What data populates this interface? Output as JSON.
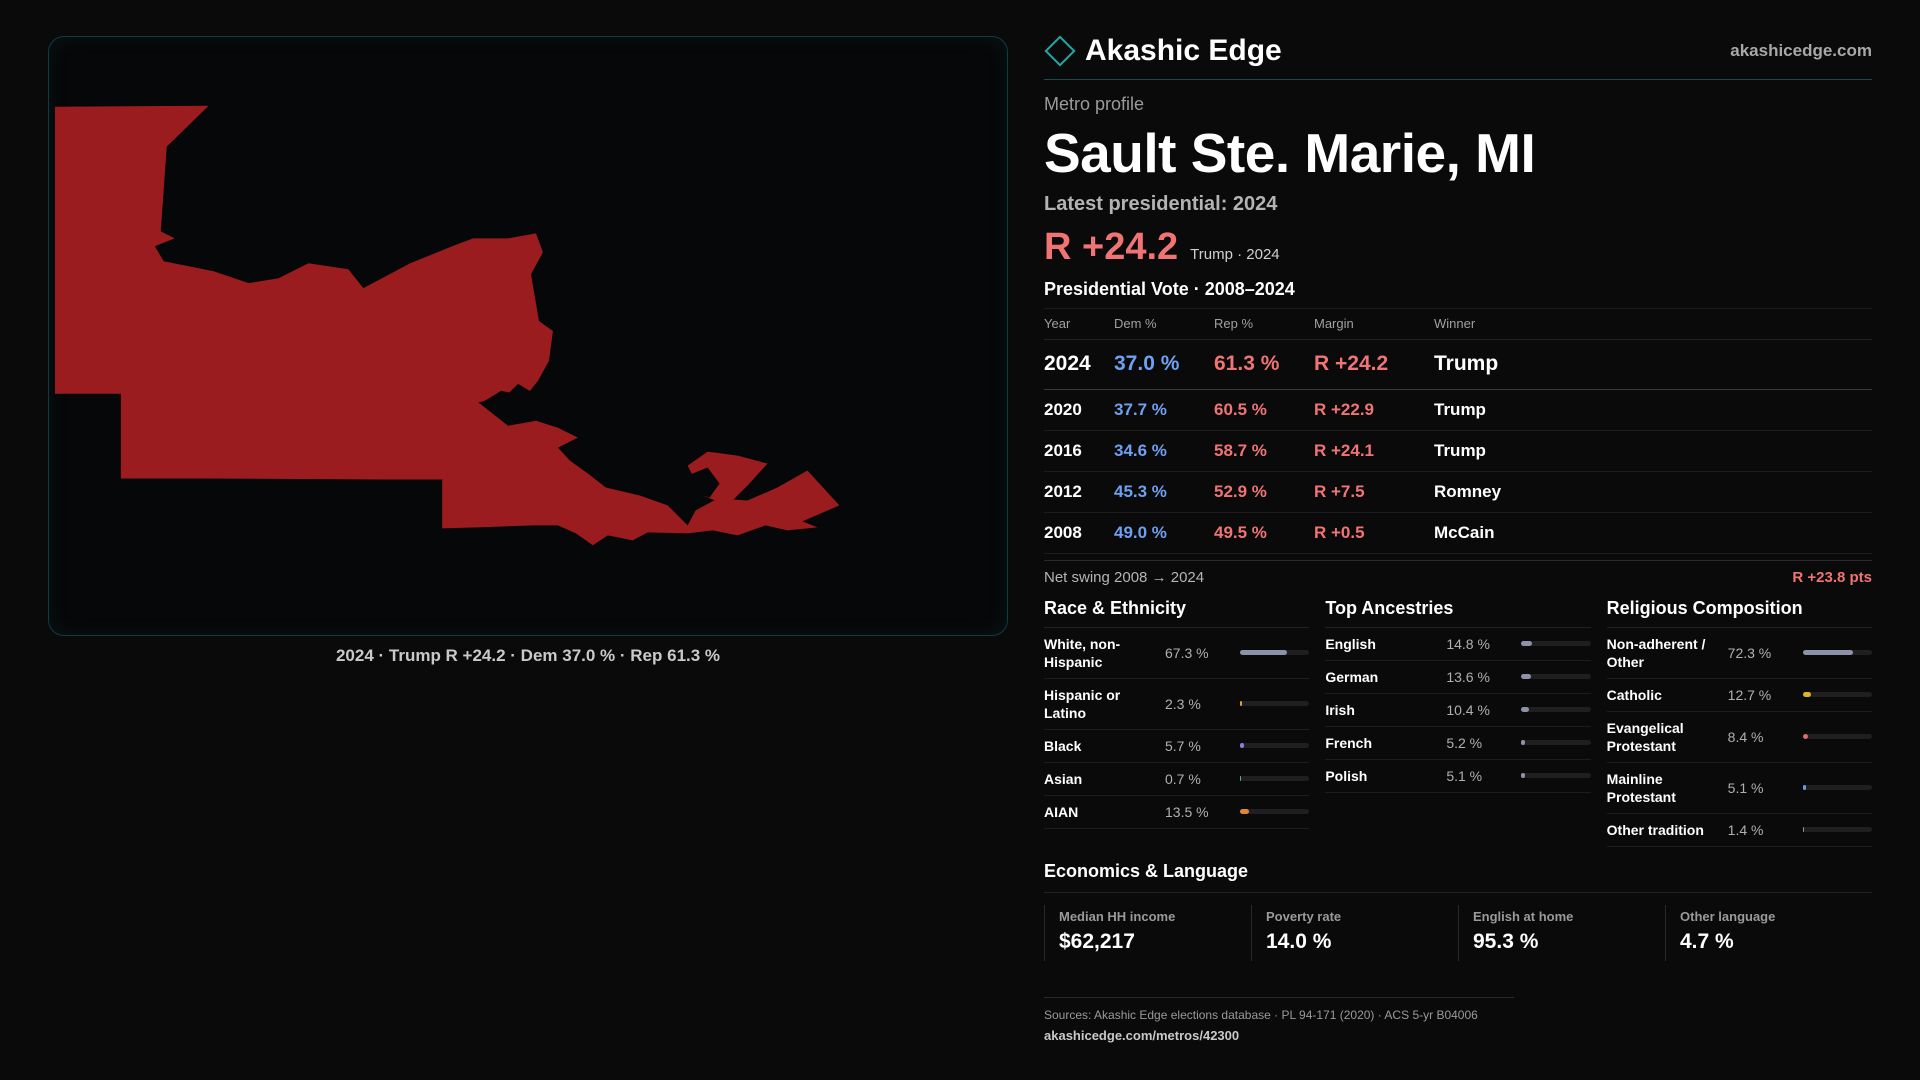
{
  "brand": {
    "name": "Akashic Edge",
    "url": "akashicedge.com",
    "logo_icon": "diamond-icon",
    "accent": "#1ea8a8"
  },
  "profile": {
    "eyebrow": "Metro profile",
    "title": "Sault Ste. Marie, MI",
    "latest_label": "Latest presidential: 2024",
    "headline_margin": "R +24.2",
    "headline_sub": "Trump · 2024"
  },
  "map": {
    "caption": "2024 · Trump R +24.2 · Dem 37.0 % · Rep 61.3 %",
    "fill_color": "#9b1c1f"
  },
  "votes": {
    "title": "Presidential Vote · 2008–2024",
    "headers": {
      "year": "Year",
      "dem": "Dem %",
      "rep": "Rep %",
      "margin": "Margin",
      "winner": "Winner"
    },
    "rows": [
      {
        "year": "2024",
        "dem": "37.0 %",
        "rep": "61.3 %",
        "margin": "R +24.2",
        "winner": "Trump"
      },
      {
        "year": "2020",
        "dem": "37.7 %",
        "rep": "60.5 %",
        "margin": "R +22.9",
        "winner": "Trump"
      },
      {
        "year": "2016",
        "dem": "34.6 %",
        "rep": "58.7 %",
        "margin": "R +24.1",
        "winner": "Trump"
      },
      {
        "year": "2012",
        "dem": "45.3 %",
        "rep": "52.9 %",
        "margin": "R +7.5",
        "winner": "Romney"
      },
      {
        "year": "2008",
        "dem": "49.0 %",
        "rep": "49.5 %",
        "margin": "R +0.5",
        "winner": "McCain"
      }
    ],
    "swing_label": "Net swing 2008 → 2024",
    "swing_value": "R +23.8 pts",
    "colors": {
      "dem": "#6fa0f2",
      "rep": "#f07474"
    }
  },
  "demographics": {
    "race": {
      "title": "Race & Ethnicity",
      "rows": [
        {
          "label": "White, non-Hispanic",
          "value": "67.3 %",
          "pct": 67.3,
          "color": "#8c93a8"
        },
        {
          "label": "Hispanic or Latino",
          "value": "2.3 %",
          "pct": 2.3,
          "color": "#e0a030"
        },
        {
          "label": "Black",
          "value": "5.7 %",
          "pct": 5.7,
          "color": "#8a7ce0"
        },
        {
          "label": "Asian",
          "value": "0.7 %",
          "pct": 0.7,
          "color": "#4fb0a0"
        },
        {
          "label": "AIAN",
          "value": "13.5 %",
          "pct": 13.5,
          "color": "#e08a30"
        }
      ]
    },
    "ancestry": {
      "title": "Top Ancestries",
      "rows": [
        {
          "label": "English",
          "value": "14.8 %",
          "pct": 14.8,
          "color": "#8c93a8"
        },
        {
          "label": "German",
          "value": "13.6 %",
          "pct": 13.6,
          "color": "#8c93a8"
        },
        {
          "label": "Irish",
          "value": "10.4 %",
          "pct": 10.4,
          "color": "#8c93a8"
        },
        {
          "label": "French",
          "value": "5.2 %",
          "pct": 5.2,
          "color": "#8c93a8"
        },
        {
          "label": "Polish",
          "value": "5.1 %",
          "pct": 5.1,
          "color": "#8c93a8"
        }
      ]
    },
    "religion": {
      "title": "Religious Composition",
      "rows": [
        {
          "label": "Non-adherent / Other",
          "value": "72.3 %",
          "pct": 72.3,
          "color": "#8c93a8"
        },
        {
          "label": "Catholic",
          "value": "12.7 %",
          "pct": 12.7,
          "color": "#e0b030"
        },
        {
          "label": "Evangelical Protestant",
          "value": "8.4 %",
          "pct": 8.4,
          "color": "#e06a6a"
        },
        {
          "label": "Mainline Protestant",
          "value": "5.1 %",
          "pct": 5.1,
          "color": "#6a9ae0"
        },
        {
          "label": "Other tradition",
          "value": "1.4 %",
          "pct": 1.4,
          "color": "#8c93a8"
        }
      ]
    }
  },
  "economics": {
    "title": "Economics & Language",
    "cards": [
      {
        "label": "Median HH income",
        "value": "$62,217"
      },
      {
        "label": "Poverty rate",
        "value": "14.0 %"
      },
      {
        "label": "English at home",
        "value": "95.3 %"
      },
      {
        "label": "Other language",
        "value": "4.7 %"
      }
    ]
  },
  "sources": {
    "text": "Sources: Akashic Edge elections database · PL 94-171 (2020) · ACS 5-yr B04006",
    "url": "akashicedge.com/metros/42300"
  }
}
